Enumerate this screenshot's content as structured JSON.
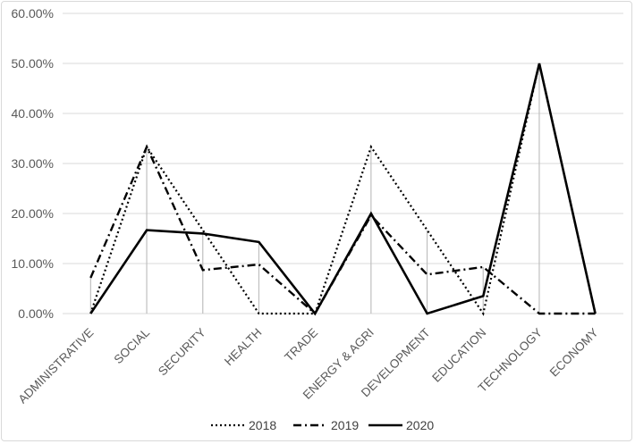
{
  "chart_data": {
    "type": "line",
    "title": "",
    "xlabel": "",
    "ylabel": "",
    "categories": [
      "ADMINISTRATIVE",
      "SOCIAL",
      "SECURITY",
      "HEALTH",
      "TRADE",
      "ENERGY & AGRI",
      "DEVELOPMENT",
      "EDUCATION",
      "TECHNOLOGY",
      "ECONOMY"
    ],
    "ylim": [
      0,
      60
    ],
    "yticks": [
      0,
      10,
      20,
      30,
      40,
      50,
      60
    ],
    "ytick_labels": [
      "0.00%",
      "10.00%",
      "20.00%",
      "30.00%",
      "40.00%",
      "50.00%",
      "60.00%"
    ],
    "grid": true,
    "drop_lines": true,
    "legend_position": "bottom",
    "series": [
      {
        "name": "2018",
        "style": "dotted",
        "color": "#000000",
        "values": [
          0,
          33.33,
          16.67,
          0,
          0,
          33.33,
          16.67,
          0,
          50,
          0
        ]
      },
      {
        "name": "2019",
        "style": "dash-dot",
        "color": "#000000",
        "values": [
          7.14,
          33.33,
          8.7,
          9.8,
          0,
          19.6,
          7.8,
          9.3,
          0,
          0
        ]
      },
      {
        "name": "2020",
        "style": "solid",
        "color": "#000000",
        "values": [
          0,
          16.67,
          16.0,
          14.3,
          0,
          20.0,
          0,
          3.5,
          50,
          0
        ]
      }
    ]
  }
}
